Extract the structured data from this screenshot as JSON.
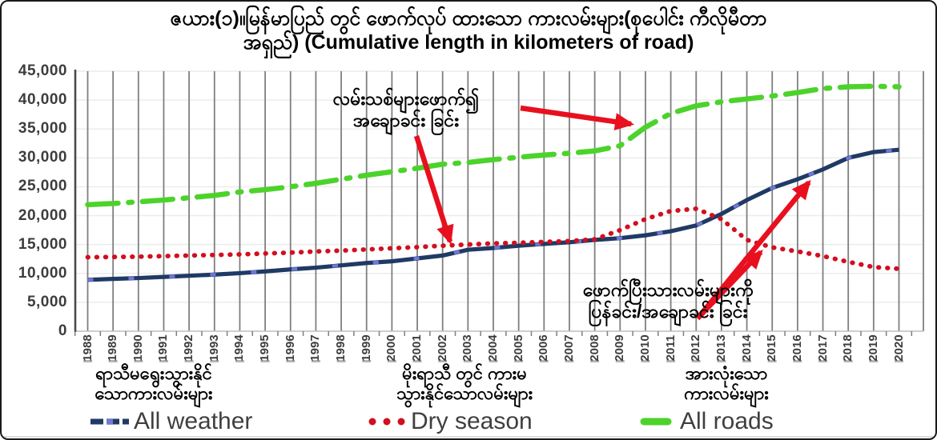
{
  "title": {
    "line1": "ဇယား(၁)။မြန်မာပြည် တွင် ဖောက်လုပ် ထားသော ကားလမ်းများ(စုပေါင်း ကီလိုမီတာ",
    "line2": "အရှည်) (Cumulative length in kilometers of road)"
  },
  "y_axis": {
    "tick_labels": [
      "0",
      "5,000",
      "10,000",
      "15,000",
      "20,000",
      "25,000",
      "30,000",
      "35,000",
      "40,000",
      "45,000"
    ]
  },
  "x_axis": {
    "years": [
      "1988",
      "1989",
      "1990",
      "1991",
      "1992",
      "1993",
      "1994",
      "1995",
      "1996",
      "1997",
      "1998",
      "1999",
      "2000",
      "2001",
      "2002",
      "2003",
      "2004",
      "2005",
      "2006",
      "2007",
      "2008",
      "2009",
      "2010",
      "2011",
      "2012",
      "2013",
      "2014",
      "2015",
      "2016",
      "2017",
      "2018",
      "2019",
      "2020"
    ]
  },
  "annotations": {
    "new_roads": {
      "line1": "လမ်းသစ်များဖောက်၍",
      "line2": "အချောခင်း ခြင်း"
    },
    "repaved": {
      "line1": "ဖောက်ပြီးသားလမ်းများကို",
      "line2": "ပြန်ခင်း/အချောခင်း ခြင်း"
    }
  },
  "group_labels": [
    {
      "line1": "ရာသီမရွေးသွားနိုင်",
      "line2": "သောကားလမ်းများ"
    },
    {
      "line1": "မိုးရာသီ တွင် ကားမ",
      "line2": "သွားနိုင်သောလမ်းများ"
    },
    {
      "line1": "အားလုံးသော",
      "line2": "ကားလမ်းများ"
    }
  ],
  "legend": [
    {
      "label": "All weather",
      "color": "#1f3a64",
      "marker": "blue-dash-with-light-square"
    },
    {
      "label": "Dry season",
      "color": "#d20f1f",
      "marker": "red-dots"
    },
    {
      "label": "All roads",
      "color": "#4cd32b",
      "marker": "green-dash"
    }
  ],
  "colors": {
    "all_weather": "#1f3a64",
    "all_weather_marker": "#7277d8",
    "dry_season": "#d20f1f",
    "all_roads": "#4cd32b",
    "arrow": "#e8101e",
    "gridline": "#7f7f7f",
    "axis": "#4a4a4a"
  },
  "chart_data": {
    "type": "line",
    "x": [
      1988,
      1989,
      1990,
      1991,
      1992,
      1993,
      1994,
      1995,
      1996,
      1997,
      1998,
      1999,
      2000,
      2001,
      2002,
      2003,
      2004,
      2005,
      2006,
      2007,
      2008,
      2009,
      2010,
      2011,
      2012,
      2013,
      2014,
      2015,
      2016,
      2017,
      2018,
      2019,
      2020
    ],
    "series": [
      {
        "name": "All weather",
        "style": "dashed-with-markers",
        "color": "#1f3a64",
        "values": [
          8900,
          9050,
          9200,
          9400,
          9600,
          9800,
          10050,
          10350,
          10700,
          11000,
          11400,
          11800,
          12100,
          12600,
          13100,
          14100,
          14400,
          14800,
          15100,
          15400,
          15800,
          16100,
          16600,
          17300,
          18300,
          20300,
          22700,
          24800,
          26300,
          28000,
          30000,
          31000,
          31400
        ]
      },
      {
        "name": "Dry season",
        "style": "dotted",
        "color": "#d20f1f",
        "values": [
          12800,
          12850,
          12900,
          13000,
          13100,
          13200,
          13300,
          13450,
          13600,
          13800,
          13950,
          14150,
          14350,
          14550,
          14800,
          15000,
          15200,
          15300,
          15450,
          15600,
          15900,
          17500,
          19400,
          20800,
          21200,
          19400,
          15800,
          14500,
          13800,
          13000,
          12000,
          11100,
          10800
        ]
      },
      {
        "name": "All roads",
        "style": "dash-dot",
        "color": "#4cd32b",
        "values": [
          21900,
          22100,
          22400,
          22700,
          23100,
          23500,
          24100,
          24500,
          25000,
          25600,
          26300,
          27000,
          27600,
          28200,
          28900,
          29200,
          29700,
          30100,
          30500,
          30800,
          31200,
          32100,
          35300,
          37700,
          39000,
          39700,
          40200,
          40700,
          41300,
          42000,
          42300,
          42400,
          42300
        ]
      }
    ],
    "title": "ဇယား(၁)။မြန်မာပြည် တွင် ဖောက်လုပ် ထားသော ကားလမ်းများ(စုပေါင်း ကီလိုမီတာ အရှည်) (Cumulative length in kilometers of road)",
    "xlabel": "",
    "ylabel": "",
    "ylim": [
      0,
      45000
    ],
    "ytick_step": 5000,
    "grid": "vertical-per-year, light-horizontal",
    "legend_position": "bottom"
  }
}
